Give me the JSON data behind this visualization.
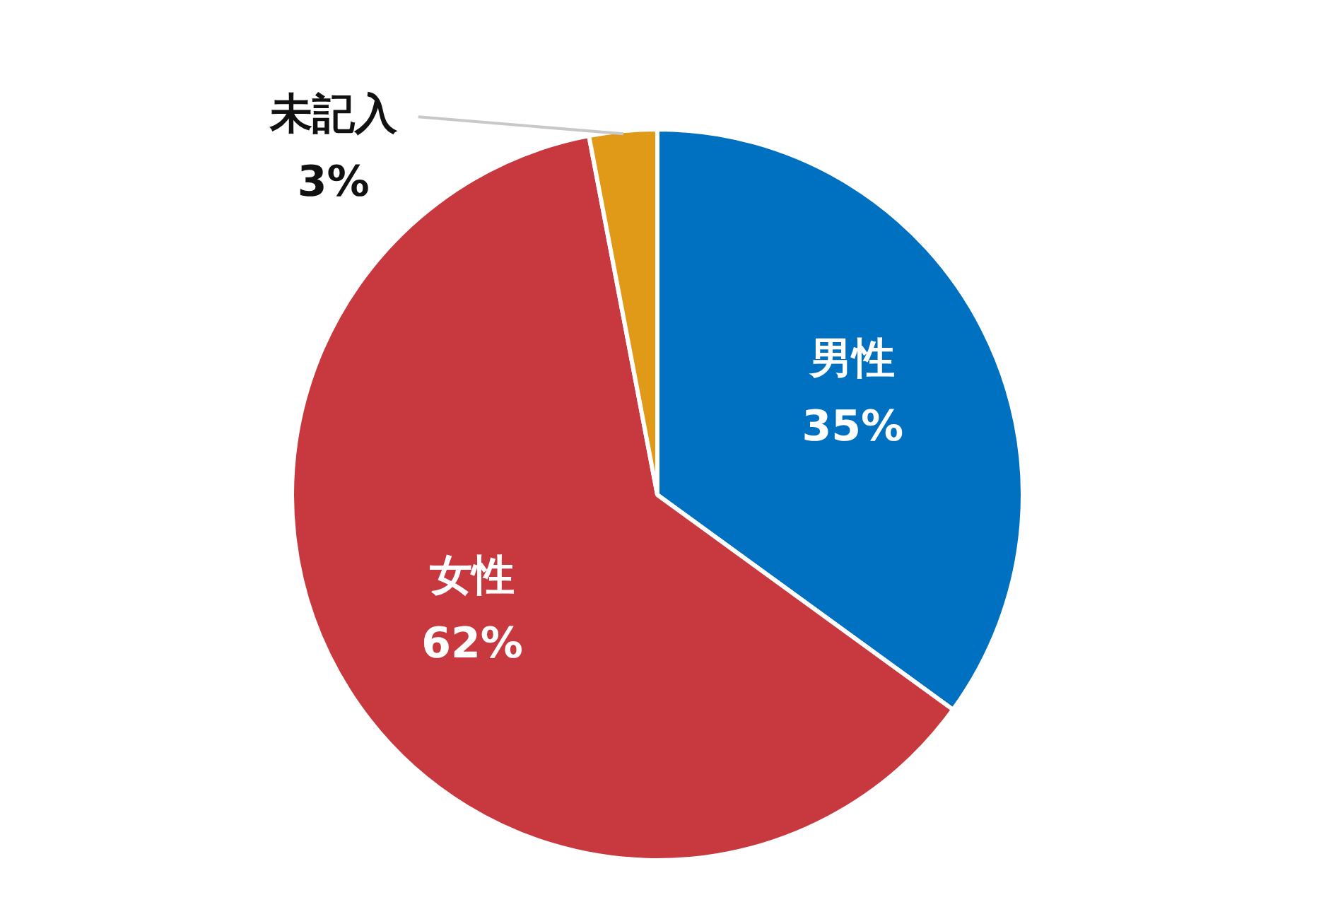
{
  "chart_data": {
    "type": "pie",
    "categories": [
      "男性",
      "女性",
      "未記入"
    ],
    "values": [
      35,
      62,
      3
    ],
    "colors": [
      "#0070c0",
      "#c8393f",
      "#e09a17"
    ],
    "value_labels": [
      "35%",
      "62%",
      "3%"
    ],
    "legend": false
  }
}
